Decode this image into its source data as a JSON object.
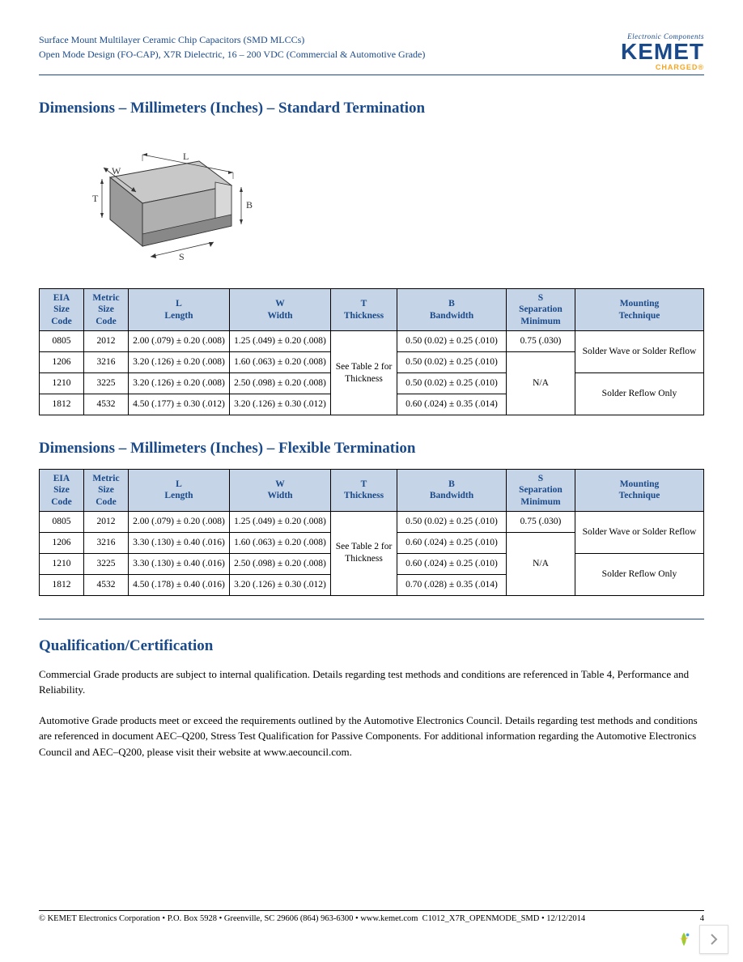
{
  "header": {
    "line1": "Surface Mount Multilayer Ceramic Chip Capacitors (SMD MLCCs)",
    "line2": "Open Mode Design (FO-CAP), X7R Dielectric, 16 – 200 VDC (Commercial & Automotive Grade)",
    "logo_tagline": "Electronic Components",
    "logo_name": "KEMET",
    "logo_sub": "CHARGED®"
  },
  "diagram": {
    "labels": {
      "L": "L",
      "W": "W",
      "T": "T",
      "B": "B",
      "S": "S"
    }
  },
  "section1_title": "Dimensions – Millimeters (Inches) – Standard Termination",
  "table_headers": {
    "eia": "EIA\nSize\nCode",
    "metric": "Metric\nSize\nCode",
    "L": "L\nLength",
    "W": "W\nWidth",
    "T": "T\nThickness",
    "B": "B\nBandwidth",
    "S": "S\nSeparation\nMinimum",
    "mount": "Mounting\nTechnique"
  },
  "table1": {
    "rows": [
      {
        "eia": "0805",
        "metric": "2012",
        "L": "2.00 (.079) ± 0.20 (.008)",
        "W": "1.25 (.049) ± 0.20 (.008)",
        "B": "0.50 (0.02) ± 0.25 (.010)"
      },
      {
        "eia": "1206",
        "metric": "3216",
        "L": "3.20 (.126) ± 0.20 (.008)",
        "W": "1.60 (.063) ± 0.20 (.008)",
        "B": "0.50 (0.02) ± 0.25 (.010)"
      },
      {
        "eia": "1210",
        "metric": "3225",
        "L": "3.20 (.126) ± 0.20 (.008)",
        "W": "2.50 (.098) ± 0.20 (.008)",
        "B": "0.50 (0.02) ± 0.25 (.010)"
      },
      {
        "eia": "1812",
        "metric": "4532",
        "L": "4.50 (.177) ± 0.30 (.012)",
        "W": "3.20 (.126) ± 0.30 (.012)",
        "B": "0.60 (.024) ± 0.35 (.014)"
      }
    ],
    "T_merged": "See Table 2 for Thickness",
    "S_row0": "0.75 (.030)",
    "S_merged": "N/A",
    "mount_top": "Solder Wave or Solder Reflow",
    "mount_bottom": "Solder Reflow Only"
  },
  "section2_title": "Dimensions – Millimeters (Inches) – Flexible Termination",
  "table2": {
    "rows": [
      {
        "eia": "0805",
        "metric": "2012",
        "L": "2.00 (.079) ± 0.20 (.008)",
        "W": "1.25 (.049) ± 0.20 (.008)",
        "B": "0.50 (0.02) ± 0.25 (.010)"
      },
      {
        "eia": "1206",
        "metric": "3216",
        "L": "3.30 (.130) ± 0.40 (.016)",
        "W": "1.60 (.063) ± 0.20 (.008)",
        "B": "0.60 (.024) ± 0.25 (.010)"
      },
      {
        "eia": "1210",
        "metric": "3225",
        "L": "3.30 (.130) ± 0.40 (.016)",
        "W": "2.50 (.098) ± 0.20 (.008)",
        "B": "0.60 (.024) ± 0.25 (.010)"
      },
      {
        "eia": "1812",
        "metric": "4532",
        "L": "4.50 (.178) ± 0.40 (.016)",
        "W": "3.20 (.126) ± 0.30 (.012)",
        "B": "0.70 (.028) ± 0.35 (.014)"
      }
    ],
    "T_merged": "See Table 2 for Thickness",
    "S_row0": "0.75 (.030)",
    "S_merged": "N/A",
    "mount_top": "Solder Wave or Solder Reflow",
    "mount_bottom": "Solder Reflow Only"
  },
  "section3_title": "Qualification/Certification",
  "qual_p1": "Commercial Grade products are subject to internal qualification. Details regarding test methods and conditions are referenced in Table 4, Performance and Reliability.",
  "qual_p2": "Automotive Grade products meet or exceed the requirements outlined by the Automotive Electronics Council. Details regarding test methods and conditions are referenced in document AEC–Q200, Stress Test Qualification for Passive Components. For additional information regarding the Automotive Electronics Council and AEC–Q200, please visit their website at www.aecouncil.com.",
  "footer": {
    "left": "© KEMET Electronics Corporation • P.O. Box 5928 • Greenville, SC 29606 (864) 963-6300 • www.kemet.com",
    "mid": "C1012_X7R_OPENMODE_SMD • 12/12/2014",
    "page": "4"
  },
  "colors": {
    "header_bg": "#c5d4e6",
    "heading": "#1a4a8a",
    "accent": "#f5a623"
  }
}
